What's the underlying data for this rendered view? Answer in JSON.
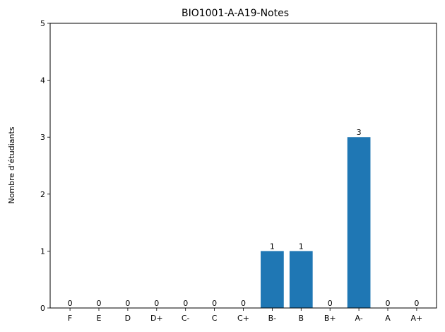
{
  "chart_data": {
    "type": "bar",
    "title": "BIO1001-A-A19-Notes",
    "xlabel": "",
    "ylabel": "Nombre d'étudiants",
    "categories": [
      "F",
      "E",
      "D",
      "D+",
      "C-",
      "C",
      "C+",
      "B-",
      "B",
      "B+",
      "A-",
      "A",
      "A+"
    ],
    "values": [
      0,
      0,
      0,
      0,
      0,
      0,
      0,
      1,
      1,
      0,
      3,
      0,
      0
    ],
    "ylim": [
      0,
      5
    ],
    "yticks": [
      0,
      1,
      2,
      3,
      4,
      5
    ],
    "grid": false,
    "bar_color": "#1f77b4"
  }
}
